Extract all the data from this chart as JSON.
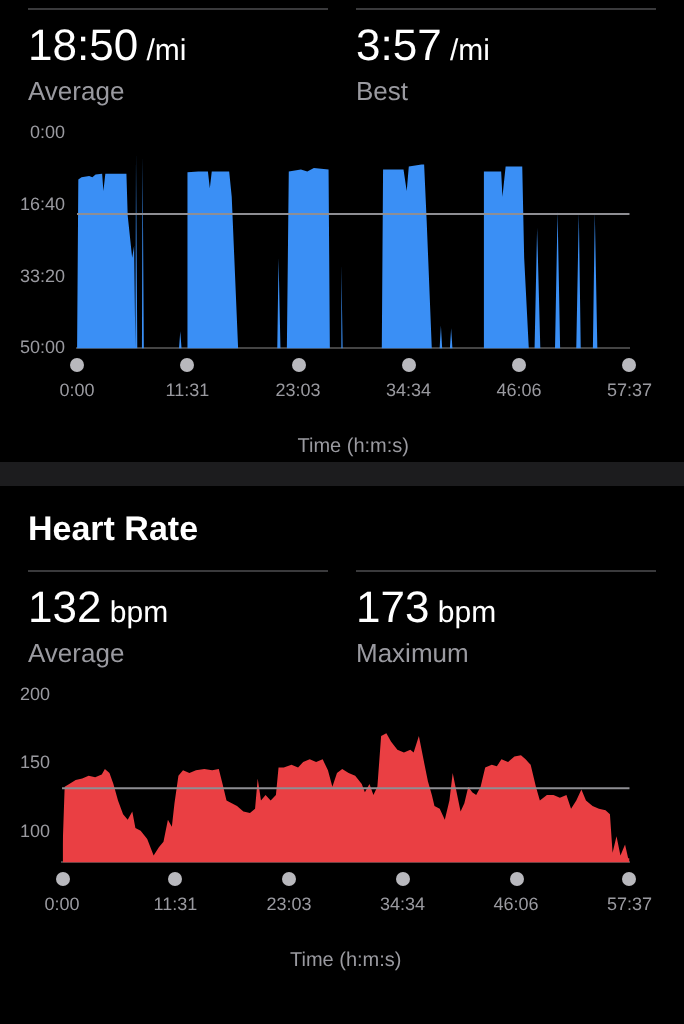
{
  "chart_data": [
    {
      "type": "area",
      "xlabel": "Time (h:m:s)",
      "annotations": [
        "18:50 /mi",
        "Average",
        "3:57 /mi",
        "Best"
      ],
      "series": [
        {
          "color": "#3a8ff5",
          "x": [
            0,
            8,
            28,
            76,
            96,
            116,
            157,
            165,
            177,
            237,
            309,
            317,
            345,
            357,
            365,
            369,
            377,
            406,
            410,
            418,
            638,
            646,
            654,
            683,
            691,
            759,
            819,
            831,
            843,
            952,
            968,
            1008,
            1253,
            1261,
            1273,
            1313,
            1325,
            1401,
            1441,
            1482,
            1574,
            1582,
            1650,
            1654,
            1662,
            1907,
            1915,
            2043,
            2063,
            2076,
            2156,
            2172,
            2188,
            2220,
            2269,
            2277,
            2285,
            2333,
            2341,
            2349,
            2537,
            2546,
            2654,
            2662,
            2682,
            2786,
            2798,
            2827,
            2863,
            2879,
            2899,
            2991,
            3007,
            3023,
            3124,
            3140,
            3152,
            3228,
            3240,
            3256,
            3457
          ],
          "values": [
            3000,
            650,
            620,
            600,
            620,
            580,
            570,
            810,
            570,
            570,
            570,
            1150,
            1740,
            1570,
            3000,
            260,
            3000,
            3000,
            320,
            3000,
            3000,
            2760,
            3000,
            3000,
            550,
            540,
            540,
            770,
            540,
            540,
            890,
            3000,
            3000,
            1740,
            3000,
            3000,
            540,
            510,
            540,
            490,
            510,
            3000,
            3000,
            1830,
            3000,
            3000,
            510,
            510,
            810,
            470,
            440,
            440,
            1230,
            3000,
            3000,
            2680,
            3000,
            3000,
            2720,
            3000,
            3000,
            540,
            540,
            890,
            470,
            470,
            1740,
            3000,
            3000,
            1320,
            3000,
            3000,
            1090,
            3000,
            3000,
            1110,
            3000,
            3000,
            1110,
            3000,
            3000
          ]
        }
      ],
      "xlim": [
        0,
        3457
      ],
      "xticks": [
        {
          "value": 0,
          "label": "0:00"
        },
        {
          "value": 691,
          "label": "11:31"
        },
        {
          "value": 1383,
          "label": "23:03"
        },
        {
          "value": 2074,
          "label": "34:34"
        },
        {
          "value": 2766,
          "label": "46:06"
        },
        {
          "value": 3457,
          "label": "57:37"
        }
      ],
      "ylim": [
        3000,
        0
      ],
      "yticks": [
        {
          "value": 0,
          "label": "0:00"
        },
        {
          "value": 1000,
          "label": "16:40"
        },
        {
          "value": 2000,
          "label": "33:20"
        },
        {
          "value": 3000,
          "label": "50:00"
        }
      ],
      "ref_lines": [
        {
          "axis": "y",
          "value": 1130,
          "color": "#8e8e93"
        }
      ],
      "grid": false,
      "legend": false
    },
    {
      "type": "area",
      "title": "Heart Rate",
      "xlabel": "Time (h:m:s)",
      "annotations": [
        "132 bpm",
        "Average",
        "173 bpm",
        "Maximum"
      ],
      "series": [
        {
          "color": "#ea3f43",
          "x": [
            4,
            16,
            44,
            83,
            123,
            162,
            202,
            242,
            261,
            289,
            313,
            341,
            372,
            400,
            428,
            447,
            479,
            519,
            558,
            590,
            618,
            645,
            669,
            685,
            709,
            737,
            776,
            816,
            867,
            915,
            955,
            978,
            1002,
            1034,
            1066,
            1105,
            1145,
            1176,
            1192,
            1212,
            1240,
            1271,
            1303,
            1319,
            1351,
            1398,
            1438,
            1469,
            1509,
            1548,
            1588,
            1620,
            1647,
            1675,
            1707,
            1746,
            1786,
            1826,
            1845,
            1873,
            1897,
            1921,
            1944,
            1976,
            2004,
            2043,
            2083,
            2122,
            2142,
            2174,
            2202,
            2229,
            2253,
            2269,
            2301,
            2332,
            2360,
            2380,
            2404,
            2428,
            2451,
            2475,
            2499,
            2523,
            2550,
            2578,
            2618,
            2649,
            2677,
            2717,
            2756,
            2796,
            2824,
            2855,
            2887,
            2911,
            2954,
            2994,
            3033,
            3073,
            3101,
            3133,
            3164,
            3192,
            3232,
            3271,
            3311,
            3338,
            3354,
            3378,
            3402,
            3430,
            3449,
            3457
          ],
          "values": [
            91,
            133,
            135,
            138,
            139,
            141,
            140,
            142,
            146,
            143,
            135,
            123,
            113,
            109,
            115,
            103,
            101,
            95,
            83,
            89,
            93,
            109,
            104,
            121,
            141,
            145,
            143,
            145,
            146,
            145,
            146,
            135,
            123,
            121,
            119,
            115,
            114,
            117,
            139,
            123,
            127,
            123,
            127,
            147,
            147,
            149,
            147,
            151,
            153,
            151,
            153,
            145,
            133,
            143,
            146,
            143,
            141,
            135,
            129,
            135,
            127,
            133,
            170,
            172,
            166,
            160,
            158,
            160,
            158,
            170,
            153,
            137,
            127,
            119,
            117,
            109,
            123,
            143,
            129,
            115,
            121,
            133,
            129,
            127,
            133,
            147,
            149,
            148,
            153,
            151,
            155,
            156,
            153,
            149,
            133,
            123,
            127,
            127,
            125,
            127,
            117,
            123,
            131,
            123,
            119,
            117,
            116,
            113,
            85,
            97,
            83,
            91,
            81,
            85
          ]
        }
      ],
      "xlim": [
        0,
        3457
      ],
      "xticks": [
        {
          "value": 0,
          "label": "0:00"
        },
        {
          "value": 691,
          "label": "11:31"
        },
        {
          "value": 1383,
          "label": "23:03"
        },
        {
          "value": 2074,
          "label": "34:34"
        },
        {
          "value": 2766,
          "label": "46:06"
        },
        {
          "value": 3457,
          "label": "57:37"
        }
      ],
      "ylim": [
        78,
        200
      ],
      "yticks": [
        100,
        150,
        200
      ],
      "ref_lines": [
        {
          "axis": "y",
          "value": 132,
          "color": "#8e8e93"
        }
      ],
      "grid": false,
      "legend": false
    }
  ]
}
